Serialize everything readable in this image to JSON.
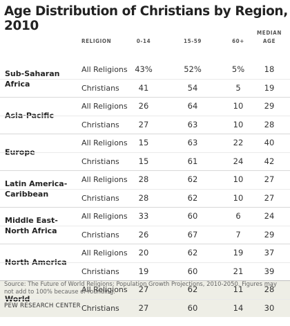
{
  "title": "Age Distribution of Christians by Region, 2010",
  "columns": {
    "religion": "RELIGION",
    "a": "0-14",
    "b": "15-59",
    "c": "60+",
    "d1": "MEDIAN",
    "d2": "AGE"
  },
  "chart_data": {
    "type": "table",
    "title": "Age Distribution of Christians by Region, 2010",
    "columns": [
      "RELIGION",
      "0-14",
      "15-59",
      "60+",
      "MEDIAN AGE"
    ],
    "groups": [
      {
        "region": "Sub-Saharan Africa",
        "rows": [
          {
            "religion": "All Religions",
            "v": [
              "43%",
              "52%",
              "5%",
              "18"
            ]
          },
          {
            "religion": "Christians",
            "v": [
              "41",
              "54",
              "5",
              "19"
            ]
          }
        ]
      },
      {
        "region": "Asia-Pacific",
        "rows": [
          {
            "religion": "All Religions",
            "v": [
              "26",
              "64",
              "10",
              "29"
            ]
          },
          {
            "religion": "Christians",
            "v": [
              "27",
              "63",
              "10",
              "28"
            ]
          }
        ]
      },
      {
        "region": "Europe",
        "rows": [
          {
            "religion": "All Religions",
            "v": [
              "15",
              "63",
              "22",
              "40"
            ]
          },
          {
            "religion": "Christians",
            "v": [
              "15",
              "61",
              "24",
              "42"
            ]
          }
        ]
      },
      {
        "region": "Latin America-Caribbean",
        "rows": [
          {
            "religion": "All Religions",
            "v": [
              "28",
              "62",
              "10",
              "27"
            ]
          },
          {
            "religion": "Christians",
            "v": [
              "28",
              "62",
              "10",
              "27"
            ]
          }
        ]
      },
      {
        "region": "Middle East-North Africa",
        "rows": [
          {
            "religion": "All Religions",
            "v": [
              "33",
              "60",
              "6",
              "24"
            ]
          },
          {
            "religion": "Christians",
            "v": [
              "26",
              "67",
              "7",
              "29"
            ]
          }
        ]
      },
      {
        "region": "North America",
        "rows": [
          {
            "religion": "All Religions",
            "v": [
              "20",
              "62",
              "19",
              "37"
            ]
          },
          {
            "religion": "Christians",
            "v": [
              "19",
              "60",
              "21",
              "39"
            ]
          }
        ]
      },
      {
        "region": "World",
        "rows": [
          {
            "religion": "All Religions",
            "v": [
              "27",
              "62",
              "11",
              "28"
            ]
          },
          {
            "religion": "Christians",
            "v": [
              "27",
              "60",
              "14",
              "30"
            ]
          }
        ]
      }
    ]
  },
  "regions": {
    "r0": "Sub-Saharan Africa",
    "r1": "Asia-Pacific",
    "r2": "Europe",
    "r3a": "Latin America-",
    "r3b": "Caribbean",
    "r4a": "Middle East-",
    "r4b": "North Africa",
    "r5": "North America",
    "r6": "World"
  },
  "source": "Source: The Future of World Religions: Population Growth Projections, 2010-2050. Figures may not add to 100% because of rounding.",
  "footer": "PEW RESEARCH CENTER",
  "colors": {
    "world_band": "#eeeee6",
    "rule": "#d8d8d8",
    "text": "#222222"
  }
}
